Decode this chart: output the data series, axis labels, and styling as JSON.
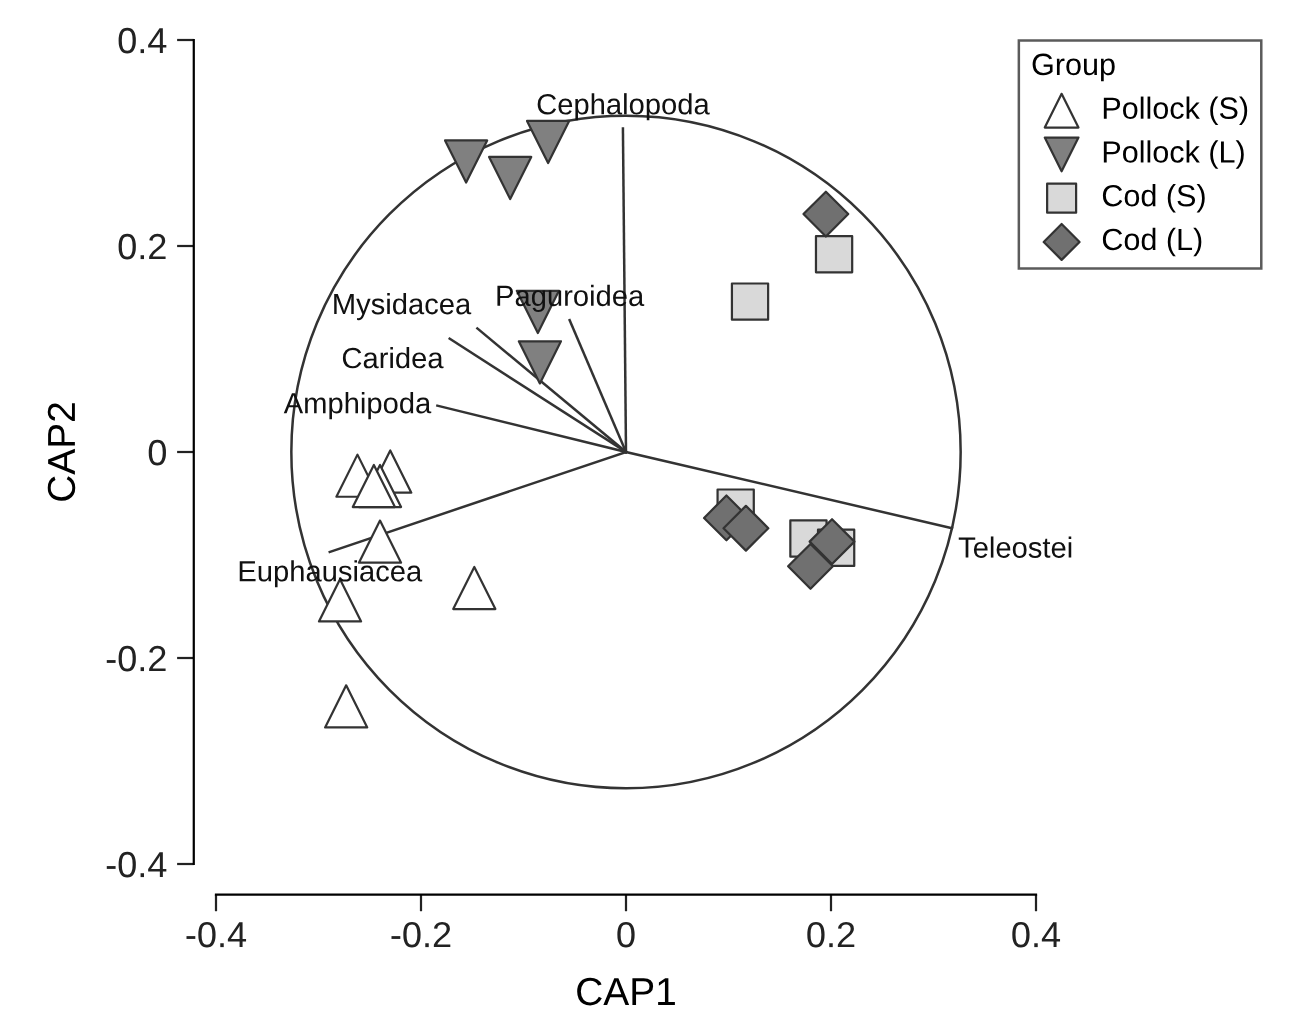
{
  "chart_data": {
    "type": "scatter",
    "xlabel": "CAP1",
    "ylabel": "CAP2",
    "legend_title": "Group",
    "legend": "top right",
    "xlim": [
      -0.4,
      0.4
    ],
    "ylim": [
      -0.4,
      0.4
    ],
    "xticks": [
      -0.4,
      -0.2,
      0,
      0.2,
      0.4
    ],
    "yticks": [
      -0.4,
      -0.2,
      0,
      0.2,
      0.4
    ],
    "grid": false,
    "series": [
      {
        "type": "line",
        "name": "Cephalopoda",
        "color": "#333333",
        "x": [
          0,
          -0.003
        ],
        "values": [
          0,
          0.314
        ]
      },
      {
        "type": "line",
        "name": "Paguroidea",
        "color": "#333333",
        "x": [
          0,
          -0.055
        ],
        "values": [
          0,
          0.128
        ]
      },
      {
        "type": "line",
        "name": "Mysidacea",
        "color": "#333333",
        "x": [
          0,
          -0.145
        ],
        "values": [
          0,
          0.12
        ]
      },
      {
        "type": "line",
        "name": "Caridea",
        "color": "#333333",
        "x": [
          0,
          -0.172
        ],
        "values": [
          0,
          0.11
        ]
      },
      {
        "type": "line",
        "name": "Amphipoda",
        "color": "#333333",
        "x": [
          0,
          -0.184
        ],
        "values": [
          0,
          0.045
        ]
      },
      {
        "type": "line",
        "name": "Euphausiacea",
        "color": "#333333",
        "x": [
          0,
          -0.289
        ],
        "values": [
          0,
          -0.097
        ]
      },
      {
        "type": "line",
        "name": "Teleostei",
        "color": "#333333",
        "x": [
          0,
          0.318
        ],
        "values": [
          0,
          -0.074
        ]
      },
      {
        "name": "Pollock (S)",
        "marker": "triangle",
        "color": "#ffffff",
        "x": [
          -0.262,
          -0.23,
          -0.24,
          -0.246,
          -0.24,
          -0.279,
          -0.148,
          -0.273
        ],
        "values": [
          -0.023,
          -0.019,
          -0.033,
          -0.033,
          -0.087,
          -0.144,
          -0.132,
          -0.247
        ]
      },
      {
        "name": "Pollock (L)",
        "marker": "triangle_down",
        "color": "#808080",
        "x": [
          -0.156,
          -0.113,
          -0.076,
          -0.086,
          -0.084
        ],
        "values": [
          0.282,
          0.266,
          0.301,
          0.136,
          0.087
        ]
      },
      {
        "name": "Cod (S)",
        "marker": "square",
        "color": "#d9d9d9",
        "x": [
          0.203,
          0.121,
          0.107,
          0.178,
          0.205
        ],
        "values": [
          0.192,
          0.146,
          -0.054,
          -0.084,
          -0.093
        ]
      },
      {
        "name": "Cod (L)",
        "marker": "diamond",
        "color": "#707070",
        "x": [
          0.195,
          0.098,
          0.117,
          0.18,
          0.201
        ],
        "values": [
          0.231,
          -0.064,
          -0.074,
          -0.111,
          -0.087
        ]
      }
    ]
  }
}
